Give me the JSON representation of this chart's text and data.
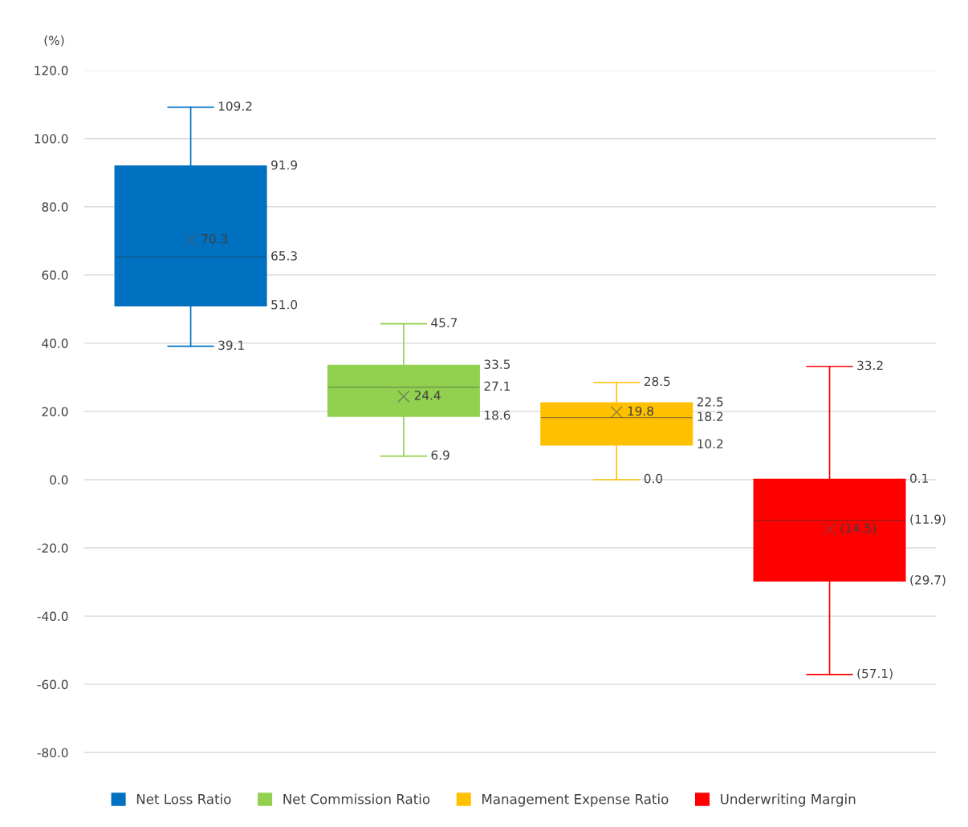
{
  "chart_data": {
    "type": "box",
    "ylabel": "(%)",
    "categories": [
      null
    ],
    "series": [
      {
        "name": "Net Loss Ratio",
        "color": "#0070c0",
        "boxes": [
          {
            "low": 39.1,
            "q1": 51.0,
            "median": 65.3,
            "q3": 91.9,
            "high": 109.2,
            "mean": 70.3
          }
        ]
      },
      {
        "name": "Net Commission Ratio",
        "color": "#92d050",
        "boxes": [
          {
            "low": 6.9,
            "q1": 18.6,
            "median": 27.1,
            "q3": 33.5,
            "high": 45.7,
            "mean": 24.4
          }
        ]
      },
      {
        "name": "Management Expense Ratio",
        "color": "#ffc000",
        "boxes": [
          {
            "low": 0.0,
            "q1": 10.2,
            "median": 18.2,
            "q3": 22.5,
            "high": 28.5,
            "mean": 19.8
          }
        ]
      },
      {
        "name": "Underwriting Margin",
        "color": "#ff0000",
        "boxes": [
          {
            "low": -57.1,
            "q1": -29.7,
            "median": -11.9,
            "q3": 0.1,
            "high": 33.2,
            "mean": -14.5
          }
        ]
      }
    ],
    "annotations": [
      "39.1",
      "51.0",
      "65.3",
      "91.9",
      "109.2",
      "70.3",
      "6.9",
      "18.6",
      "27.1",
      "33.5",
      "45.7",
      "24.4",
      "0.0",
      "10.2",
      "18.2",
      "22.5",
      "28.5",
      "19.8",
      "(57.1)",
      "(29.7)",
      "(11.9)",
      "0.1",
      "33.2",
      "(14.5)"
    ],
    "ylim": [
      -80,
      120
    ],
    "yticks": [
      {
        "value": -80,
        "label": "-80.0"
      },
      {
        "value": -60,
        "label": "-60.0"
      },
      {
        "value": -40,
        "label": "-40.0"
      },
      {
        "value": -20,
        "label": "-20.0"
      },
      {
        "value": 0,
        "label": "0.0"
      },
      {
        "value": 20,
        "label": "20.0"
      },
      {
        "value": 40,
        "label": "40.0"
      },
      {
        "value": 60,
        "label": "60.0"
      },
      {
        "value": 80,
        "label": "80.0"
      },
      {
        "value": 100,
        "label": "100.0"
      },
      {
        "value": 120,
        "label": "120.0"
      }
    ],
    "grid": "y",
    "legend": "bottom",
    "marker": "cross"
  }
}
